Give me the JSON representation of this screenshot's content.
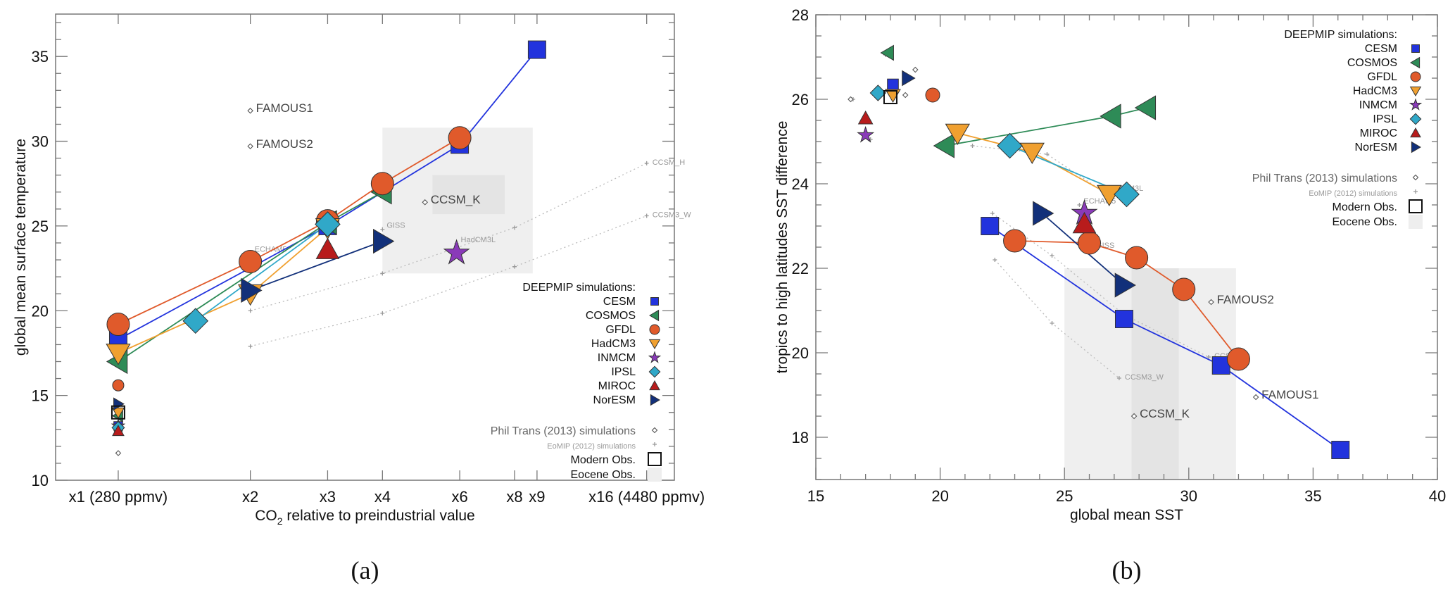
{
  "chart_data": [
    {
      "id": "a",
      "type": "scatter",
      "panel_label": "(a)",
      "xlabel": "CO2 relative to preindustrial value",
      "xlabel_main": "CO",
      "xlabel_sub": "2",
      "xlabel_rest": " relative to preindustrial value",
      "ylabel": "global mean surface temperature",
      "x_scale": "log2",
      "xlim": [
        0.72,
        18.5
      ],
      "ylim": [
        10,
        37.5
      ],
      "x_ticks": [
        {
          "value": 1,
          "label": "x1 (280 ppmv)"
        },
        {
          "value": 2,
          "label": "x2"
        },
        {
          "value": 3,
          "label": "x3"
        },
        {
          "value": 4,
          "label": "x4"
        },
        {
          "value": 6,
          "label": "x6"
        },
        {
          "value": 8,
          "label": "x8"
        },
        {
          "value": 9,
          "label": "x9"
        },
        {
          "value": 16,
          "label": "x16 (4480 ppmv)"
        }
      ],
      "y_ticks": [
        10,
        15,
        20,
        25,
        30,
        35
      ],
      "eocene_obs": {
        "x": [
          4,
          8.8
        ],
        "y": [
          22.2,
          30.8
        ],
        "inner_x": [
          5.2,
          7.6
        ],
        "inner_y": [
          25.7,
          28.0
        ]
      },
      "modern_obs": {
        "x": 1,
        "y": 14.0
      },
      "series": [
        {
          "name": "CESM",
          "marker": "square",
          "color": "#2233dd",
          "points": [
            [
              1,
              18.3
            ],
            [
              3,
              25.0
            ],
            [
              6,
              29.8
            ],
            [
              9,
              35.4
            ]
          ],
          "pi": [
            1,
            13.2
          ]
        },
        {
          "name": "COSMOS",
          "marker": "triangle-left",
          "color": "#2e8b57",
          "points": [
            [
              1,
              17.0
            ],
            [
              3,
              25.2
            ],
            [
              4,
              27.0
            ]
          ],
          "pi": [
            1,
            13.8
          ]
        },
        {
          "name": "GFDL",
          "marker": "circle",
          "color": "#e05a2b",
          "points": [
            [
              1,
              19.2
            ],
            [
              2,
              22.9
            ],
            [
              3,
              25.3
            ],
            [
              4,
              27.5
            ],
            [
              6,
              30.2
            ]
          ],
          "pi": [
            1,
            15.6
          ]
        },
        {
          "name": "HadCM3",
          "marker": "triangle-down",
          "color": "#f0a030",
          "points": [
            [
              1,
              17.5
            ],
            [
              2,
              21.0
            ],
            [
              3,
              24.9
            ]
          ],
          "pi": [
            1,
            14.0
          ]
        },
        {
          "name": "INMCM",
          "marker": "star",
          "color": "#8a3ab9",
          "points": [
            [
              5.9,
              23.4
            ]
          ],
          "pi": [
            1,
            13.2
          ]
        },
        {
          "name": "IPSL",
          "marker": "diamond",
          "color": "#30a8c8",
          "points": [
            [
              1.5,
              19.4
            ],
            [
              3,
              25.1
            ]
          ],
          "pi": [
            1,
            13.1
          ]
        },
        {
          "name": "MIROC",
          "marker": "triangle-up",
          "color": "#b81c1c",
          "points": [
            [
              3,
              23.6
            ]
          ],
          "pi": [
            1,
            12.9
          ]
        },
        {
          "name": "NorESM",
          "marker": "triangle-right",
          "color": "#12307a",
          "points": [
            [
              2,
              21.2
            ],
            [
              4,
              24.1
            ]
          ],
          "pi": [
            1,
            14.5
          ]
        }
      ],
      "eomip_lines": [
        {
          "name": "CCSM_H",
          "points": [
            [
              2,
              20.0
            ],
            [
              4,
              22.2
            ],
            [
              8,
              24.9
            ],
            [
              16,
              28.7
            ]
          ],
          "label_at": 3
        },
        {
          "name": "CCSM3_W",
          "points": [
            [
              2,
              17.9
            ],
            [
              4,
              19.85
            ],
            [
              8,
              22.6
            ],
            [
              16,
              25.6
            ]
          ],
          "label_at": 3
        }
      ],
      "eomip_points": [
        {
          "name": "ECHAM5",
          "x": 2,
          "y": 23.4
        },
        {
          "name": "GISS",
          "x": 4,
          "y": 24.8
        },
        {
          "name": "HadCM3L",
          "x": 5.9,
          "y": 23.95
        }
      ],
      "philtrans_points": [
        {
          "name": "FAMOUS1",
          "x": 2,
          "y": 31.8,
          "big": true
        },
        {
          "name": "FAMOUS2",
          "x": 2,
          "y": 29.7,
          "big": true
        },
        {
          "name": "CCSM_K",
          "x": 5.0,
          "y": 26.4,
          "big": true
        },
        {
          "name": "",
          "x": 1,
          "y": 11.6,
          "big": false
        }
      ]
    },
    {
      "id": "b",
      "type": "scatter",
      "panel_label": "(b)",
      "xlabel": "global mean SST",
      "ylabel": "tropics to high latitudes SST difference",
      "x_scale": "linear",
      "xlim": [
        15,
        40
      ],
      "ylim": [
        17,
        28
      ],
      "x_ticks": [
        {
          "value": 15,
          "label": "15"
        },
        {
          "value": 20,
          "label": "20"
        },
        {
          "value": 25,
          "label": "25"
        },
        {
          "value": 30,
          "label": "30"
        },
        {
          "value": 35,
          "label": "35"
        },
        {
          "value": 40,
          "label": "40"
        }
      ],
      "y_ticks": [
        18,
        20,
        22,
        24,
        26,
        28
      ],
      "eocene_obs": {
        "x": [
          25,
          31.9
        ],
        "y": [
          17,
          22.0
        ],
        "inner_x": [
          27.7,
          29.6
        ],
        "inner_y": [
          17,
          22.0
        ]
      },
      "modern_obs": {
        "x": 18.0,
        "y": 26.05
      },
      "series": [
        {
          "name": "CESM",
          "marker": "square",
          "color": "#2233dd",
          "points": [
            [
              22.0,
              23.0
            ],
            [
              27.4,
              20.8
            ],
            [
              31.3,
              19.7
            ],
            [
              36.1,
              17.7
            ]
          ],
          "pi": [
            18.1,
            26.35
          ]
        },
        {
          "name": "COSMOS",
          "marker": "triangle-left",
          "color": "#2e8b57",
          "points": [
            [
              20.2,
              24.9
            ],
            [
              26.9,
              25.6
            ],
            [
              28.3,
              25.8
            ]
          ],
          "pi": [
            17.9,
            27.1
          ]
        },
        {
          "name": "GFDL",
          "marker": "circle",
          "color": "#e05a2b",
          "points": [
            [
              23.0,
              22.65
            ],
            [
              26.0,
              22.6
            ],
            [
              27.9,
              22.25
            ],
            [
              29.8,
              21.5
            ],
            [
              32.0,
              19.85
            ]
          ],
          "pi": [
            19.7,
            26.1
          ]
        },
        {
          "name": "HadCM3",
          "marker": "triangle-down",
          "color": "#f0a030",
          "points": [
            [
              20.7,
              25.2
            ],
            [
              23.7,
              24.75
            ],
            [
              26.8,
              23.75
            ]
          ],
          "pi": [
            18.1,
            26.1
          ]
        },
        {
          "name": "INMCM",
          "marker": "star",
          "color": "#8a3ab9",
          "points": [
            [
              25.8,
              23.3
            ]
          ],
          "pi": [
            17.0,
            25.15
          ]
        },
        {
          "name": "IPSL",
          "marker": "diamond",
          "color": "#30a8c8",
          "points": [
            [
              22.8,
              24.9
            ],
            [
              27.5,
              23.75
            ]
          ],
          "pi": [
            17.5,
            26.15
          ]
        },
        {
          "name": "MIROC",
          "marker": "triangle-up",
          "color": "#b81c1c",
          "points": [
            [
              25.8,
              23.05
            ]
          ],
          "pi": [
            17.0,
            25.55
          ]
        },
        {
          "name": "NorESM",
          "marker": "triangle-right",
          "color": "#12307a",
          "points": [
            [
              24.1,
              23.3
            ],
            [
              27.4,
              21.6
            ]
          ],
          "pi": [
            18.7,
            26.5
          ]
        }
      ],
      "eomip_lines": [
        {
          "name": "CCSM_H",
          "points": [
            [
              22.1,
              23.3
            ],
            [
              24.5,
              22.3
            ],
            [
              27.4,
              20.9
            ],
            [
              30.8,
              19.9
            ]
          ],
          "label_at": 3
        },
        {
          "name": "CCSM3_W",
          "points": [
            [
              22.2,
              22.2
            ],
            [
              24.5,
              20.7
            ],
            [
              27.2,
              19.4
            ]
          ],
          "label_at": 2
        },
        {
          "name": "",
          "points": [
            [
              21.3,
              24.9
            ],
            [
              24.3,
              24.7
            ],
            [
              26.6,
              23.8
            ]
          ],
          "label_at": -1
        }
      ],
      "eomip_points": [
        {
          "name": "ECHAM5",
          "x": 25.6,
          "y": 23.5
        },
        {
          "name": "GISS",
          "x": 26.1,
          "y": 22.45
        },
        {
          "name": "HadCM3L",
          "x": 26.6,
          "y": 23.8
        },
        {
          "name": "",
          "x": 17.2,
          "y": 25.05
        },
        {
          "name": "",
          "x": 17.8,
          "y": 27.05
        },
        {
          "name": "",
          "x": 16.5,
          "y": 26.0
        }
      ],
      "philtrans_points": [
        {
          "name": "FAMOUS2",
          "x": 30.9,
          "y": 21.2,
          "big": true
        },
        {
          "name": "FAMOUS1",
          "x": 32.7,
          "y": 18.95,
          "big": true
        },
        {
          "name": "CCSM_K",
          "x": 27.8,
          "y": 18.5,
          "big": true
        },
        {
          "name": "",
          "x": 16.4,
          "y": 26.0,
          "big": false
        },
        {
          "name": "",
          "x": 19.0,
          "y": 26.7,
          "big": false
        },
        {
          "name": "",
          "x": 18.6,
          "y": 26.1,
          "big": false
        }
      ]
    }
  ],
  "legend": {
    "title": "DEEPMIP simulations:",
    "models": [
      "CESM",
      "COSMOS",
      "GFDL",
      "HadCM3",
      "INMCM",
      "IPSL",
      "MIROC",
      "NorESM"
    ],
    "philtrans": "Phil Trans (2013) simulations",
    "eomip": "EoMIP (2012) simulations",
    "modern": "Modern Obs.",
    "eocene": "Eocene Obs."
  }
}
